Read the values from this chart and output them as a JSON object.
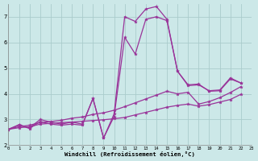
{
  "xlabel": "Windchill (Refroidissement éolien,°C)",
  "background_color": "#cce8e8",
  "grid_color": "#aacccc",
  "line_color": "#993399",
  "xlim": [
    0,
    23
  ],
  "ylim": [
    2,
    7.5
  ],
  "yticks": [
    2,
    3,
    4,
    5,
    6,
    7
  ],
  "xticks": [
    0,
    1,
    2,
    3,
    4,
    5,
    6,
    7,
    8,
    9,
    10,
    11,
    12,
    13,
    14,
    15,
    16,
    17,
    18,
    19,
    20,
    21,
    22,
    23
  ],
  "series": [
    {
      "x": [
        0,
        1,
        2,
        3,
        4,
        5,
        6,
        7,
        8,
        9,
        10,
        11,
        12,
        13,
        14,
        15,
        16,
        17,
        18,
        19,
        20,
        21,
        22
      ],
      "y": [
        2.62,
        2.8,
        2.68,
        3.0,
        2.9,
        2.82,
        2.9,
        2.82,
        3.82,
        2.28,
        3.22,
        7.0,
        6.82,
        7.3,
        7.4,
        6.9,
        4.88,
        4.32,
        4.35,
        4.12,
        4.15,
        4.62,
        4.42
      ]
    },
    {
      "x": [
        0,
        1,
        2,
        3,
        4,
        5,
        6,
        7,
        8,
        9,
        10,
        11,
        12,
        13,
        14,
        15,
        16,
        17,
        18,
        19,
        20,
        21,
        22
      ],
      "y": [
        2.62,
        2.68,
        2.72,
        2.82,
        2.85,
        2.88,
        2.9,
        2.93,
        2.96,
        2.99,
        3.03,
        3.08,
        3.18,
        3.28,
        3.38,
        3.48,
        3.55,
        3.6,
        3.52,
        3.58,
        3.68,
        3.78,
        3.98
      ]
    },
    {
      "x": [
        0,
        1,
        2,
        3,
        4,
        5,
        6,
        7,
        8,
        9,
        10,
        11,
        12,
        13,
        14,
        15,
        16,
        17,
        18,
        19,
        20,
        21,
        22
      ],
      "y": [
        2.62,
        2.72,
        2.78,
        2.88,
        2.92,
        2.97,
        3.05,
        3.1,
        3.2,
        3.26,
        3.36,
        3.5,
        3.65,
        3.8,
        3.95,
        4.1,
        4.0,
        4.06,
        3.6,
        3.7,
        3.85,
        4.05,
        4.28
      ]
    },
    {
      "x": [
        0,
        1,
        2,
        3,
        4,
        5,
        6,
        7,
        8,
        9,
        10,
        11,
        12,
        13,
        14,
        15,
        16,
        17,
        18,
        19,
        20,
        21,
        22
      ],
      "y": [
        2.62,
        2.78,
        2.65,
        2.92,
        2.82,
        2.78,
        2.82,
        2.78,
        3.82,
        2.28,
        3.12,
        6.2,
        5.55,
        6.9,
        7.0,
        6.85,
        4.88,
        4.35,
        4.38,
        4.1,
        4.12,
        4.58,
        4.42
      ]
    }
  ]
}
